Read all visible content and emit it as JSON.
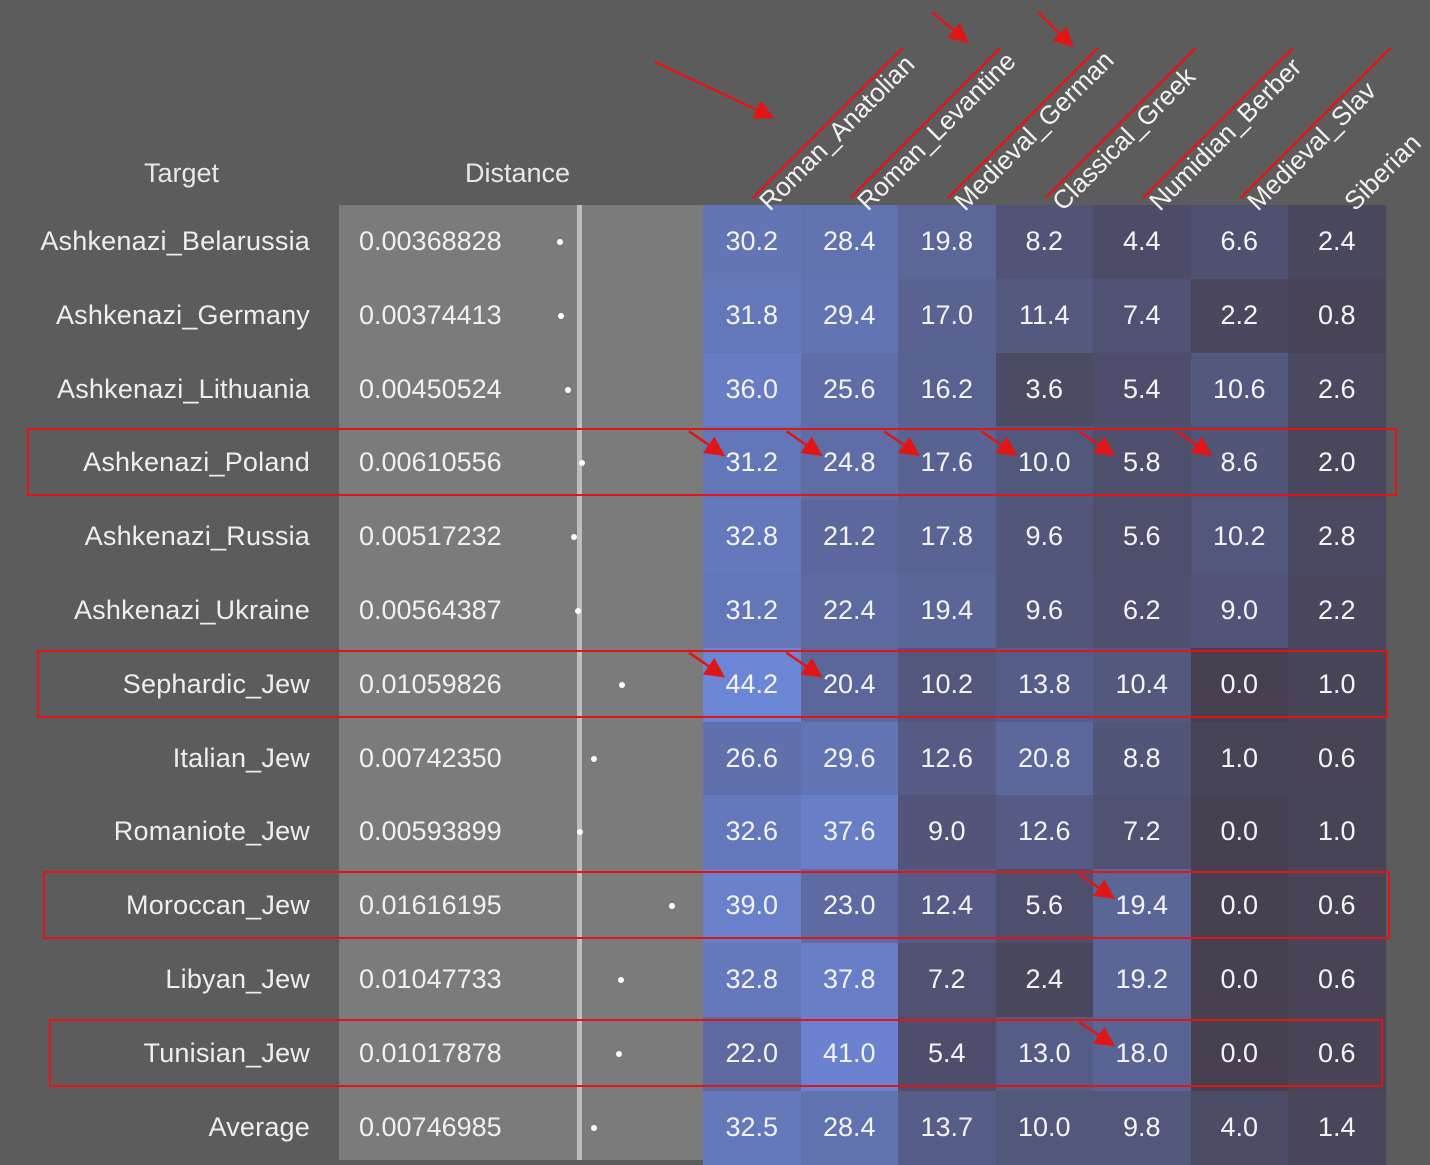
{
  "header": {
    "target_label": "Target",
    "distance_label": "Distance"
  },
  "colors": {
    "background": "#5c5c5c",
    "distance_panel": "#7b7b7b",
    "highlight": "#e01616",
    "cell_low": "#464050",
    "cell_high": "#6c86d6"
  },
  "chart_data": {
    "type": "heatmap",
    "title": "",
    "columns": [
      "Roman_Anatolian",
      "Roman_Levantine",
      "Medieval_German",
      "Classical_Greek",
      "Numidian_Berber",
      "Medieval_Slav",
      "Siberian"
    ],
    "rows": [
      {
        "target": "Ashkenazi_Belarussia",
        "distance": "0.00368828",
        "values": [
          "30.2",
          "28.4",
          "19.8",
          "8.2",
          "4.4",
          "6.6",
          "2.4"
        ]
      },
      {
        "target": "Ashkenazi_Germany",
        "distance": "0.00374413",
        "values": [
          "31.8",
          "29.4",
          "17.0",
          "11.4",
          "7.4",
          "2.2",
          "0.8"
        ]
      },
      {
        "target": "Ashkenazi_Lithuania",
        "distance": "0.00450524",
        "values": [
          "36.0",
          "25.6",
          "16.2",
          "3.6",
          "5.4",
          "10.6",
          "2.6"
        ]
      },
      {
        "target": "Ashkenazi_Poland",
        "distance": "0.00610556",
        "values": [
          "31.2",
          "24.8",
          "17.6",
          "10.0",
          "5.8",
          "8.6",
          "2.0"
        ]
      },
      {
        "target": "Ashkenazi_Russia",
        "distance": "0.00517232",
        "values": [
          "32.8",
          "21.2",
          "17.8",
          "9.6",
          "5.6",
          "10.2",
          "2.8"
        ]
      },
      {
        "target": "Ashkenazi_Ukraine",
        "distance": "0.00564387",
        "values": [
          "31.2",
          "22.4",
          "19.4",
          "9.6",
          "6.2",
          "9.0",
          "2.2"
        ]
      },
      {
        "target": "Sephardic_Jew",
        "distance": "0.01059826",
        "values": [
          "44.2",
          "20.4",
          "10.2",
          "13.8",
          "10.4",
          "0.0",
          "1.0"
        ]
      },
      {
        "target": "Italian_Jew",
        "distance": "0.00742350",
        "values": [
          "26.6",
          "29.6",
          "12.6",
          "20.8",
          "8.8",
          "1.0",
          "0.6"
        ]
      },
      {
        "target": "Romaniote_Jew",
        "distance": "0.00593899",
        "values": [
          "32.6",
          "37.6",
          "9.0",
          "12.6",
          "7.2",
          "0.0",
          "1.0"
        ]
      },
      {
        "target": "Moroccan_Jew",
        "distance": "0.01616195",
        "values": [
          "39.0",
          "23.0",
          "12.4",
          "5.6",
          "19.4",
          "0.0",
          "0.6"
        ]
      },
      {
        "target": "Libyan_Jew",
        "distance": "0.01047733",
        "values": [
          "32.8",
          "37.8",
          "7.2",
          "2.4",
          "19.2",
          "0.0",
          "0.6"
        ]
      },
      {
        "target": "Tunisian_Jew",
        "distance": "0.01017878",
        "values": [
          "22.0",
          "41.0",
          "5.4",
          "13.0",
          "18.0",
          "0.0",
          "0.6"
        ]
      },
      {
        "target": "Average",
        "distance": "0.00746985",
        "values": [
          "32.5",
          "28.4",
          "13.7",
          "10.0",
          "9.8",
          "4.0",
          "1.4"
        ]
      }
    ],
    "distance_range": [
      0,
      0.02
    ],
    "highlighted_rows": [
      "Ashkenazi_Poland",
      "Sephardic_Jew",
      "Moroccan_Jew",
      "Tunisian_Jew"
    ],
    "underlined_columns": [
      "Roman_Anatolian",
      "Roman_Levantine",
      "Medieval_German",
      "Classical_Greek",
      "Numidian_Berber",
      "Medieval_Slav"
    ],
    "arrowed_cells": [
      {
        "row": "Ashkenazi_Poland",
        "columns": [
          "Roman_Anatolian",
          "Roman_Levantine",
          "Medieval_German",
          "Classical_Greek",
          "Numidian_Berber",
          "Medieval_Slav"
        ]
      },
      {
        "row": "Sephardic_Jew",
        "columns": [
          "Roman_Anatolian",
          "Roman_Levantine"
        ]
      },
      {
        "row": "Moroccan_Jew",
        "columns": [
          "Numidian_Berber"
        ]
      },
      {
        "row": "Tunisian_Jew",
        "columns": [
          "Numidian_Berber"
        ]
      }
    ],
    "arrowed_headers": [
      "Roman_Anatolian",
      "Roman_Levantine",
      "Medieval_German"
    ]
  }
}
